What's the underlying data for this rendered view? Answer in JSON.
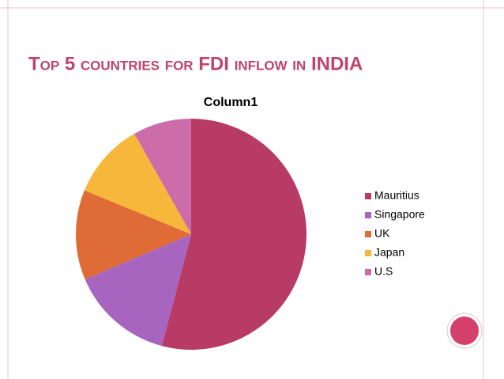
{
  "chart_data": {
    "type": "pie",
    "title": "Top 5 countries for FDI inflow in INDIA",
    "subtitle": "Column1",
    "categories": [
      "Mauritius",
      "Singapore",
      "UK",
      "Japan",
      "U.S"
    ],
    "values": [
      54.1,
      14.5,
      12.6,
      10.6,
      8.2
    ],
    "colors": [
      "#b83b66",
      "#a865bf",
      "#df6b36",
      "#f6b73b",
      "#cc6ca8"
    ],
    "legend": "right"
  }
}
